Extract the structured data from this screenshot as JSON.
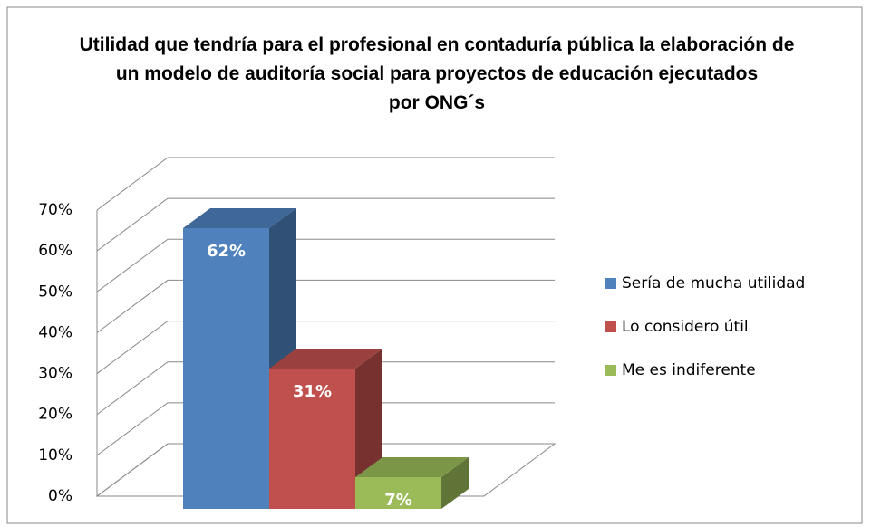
{
  "chart_data": {
    "type": "bar3d",
    "title": "Utilidad que tendría para el profesional en contaduría pública la elaboración de un modelo de auditoría social para proyectos de educación ejecutados por ONG´s",
    "categories": [
      null
    ],
    "series": [
      {
        "name": "Sería de mucha utilidad",
        "color": "#4f81bd",
        "values": [
          62
        ],
        "value_labels": [
          "62%"
        ]
      },
      {
        "name": "Lo considero útil",
        "color": "#c0504d",
        "values": [
          31
        ],
        "value_labels": [
          "31%"
        ]
      },
      {
        "name": "Me es indiferente",
        "color": "#9bbb59",
        "values": [
          7
        ],
        "value_labels": [
          "7%"
        ]
      }
    ],
    "ylim": [
      0,
      70
    ],
    "yticks": [
      {
        "value": 0,
        "label": "0%"
      },
      {
        "value": 10,
        "label": "10%"
      },
      {
        "value": 20,
        "label": "20%"
      },
      {
        "value": 30,
        "label": "30%"
      },
      {
        "value": 40,
        "label": "40%"
      },
      {
        "value": 50,
        "label": "50%"
      },
      {
        "value": 60,
        "label": "60%"
      },
      {
        "value": 70,
        "label": "70%"
      }
    ],
    "grid": true,
    "legend": "right"
  }
}
